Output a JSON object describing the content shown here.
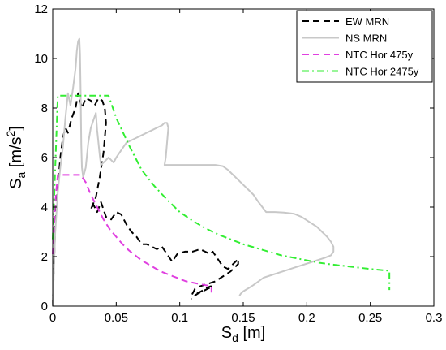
{
  "chart_data": {
    "type": "line",
    "xlabel": {
      "main": "S",
      "sub": "d",
      "unit": " [m]"
    },
    "ylabel": {
      "main": "S",
      "sub": "a",
      "unit": " [m/s",
      "sup": "2",
      "close": "]"
    },
    "xlim": [
      0,
      0.3
    ],
    "ylim": [
      0,
      12
    ],
    "xticks": [
      0,
      0.05,
      0.1,
      0.15,
      0.2,
      0.25,
      0.3
    ],
    "xtick_labels": [
      "0",
      "0.05",
      "0.1",
      "0.15",
      "0.2",
      "0.25",
      "0.3"
    ],
    "yticks": [
      0,
      2,
      4,
      6,
      8,
      10,
      12
    ],
    "ytick_labels": [
      "0",
      "2",
      "4",
      "6",
      "8",
      "10",
      "12"
    ],
    "legend_position": "top-right",
    "series": [
      {
        "name": "EW MRN",
        "color": "#000000",
        "dash": "dashed",
        "points": [
          [
            0,
            0
          ],
          [
            0.002,
            3.2
          ],
          [
            0.004,
            4.8
          ],
          [
            0.006,
            6.0
          ],
          [
            0.008,
            6.8
          ],
          [
            0.01,
            7.2
          ],
          [
            0.012,
            7.0
          ],
          [
            0.015,
            7.6
          ],
          [
            0.018,
            8.0
          ],
          [
            0.02,
            8.6
          ],
          [
            0.023,
            8.0
          ],
          [
            0.026,
            8.4
          ],
          [
            0.03,
            8.3
          ],
          [
            0.033,
            8.1
          ],
          [
            0.036,
            8.4
          ],
          [
            0.039,
            8.3
          ],
          [
            0.041,
            8.0
          ],
          [
            0.042,
            7.4
          ],
          [
            0.04,
            6.2
          ],
          [
            0.037,
            5.2
          ],
          [
            0.034,
            4.4
          ],
          [
            0.03,
            3.9
          ],
          [
            0.032,
            4.1
          ],
          [
            0.035,
            3.8
          ],
          [
            0.038,
            4.2
          ],
          [
            0.042,
            3.6
          ],
          [
            0.046,
            3.5
          ],
          [
            0.05,
            3.8
          ],
          [
            0.054,
            3.7
          ],
          [
            0.058,
            3.3
          ],
          [
            0.062,
            3.0
          ],
          [
            0.066,
            2.8
          ],
          [
            0.07,
            2.5
          ],
          [
            0.074,
            2.5
          ],
          [
            0.078,
            2.4
          ],
          [
            0.082,
            2.3
          ],
          [
            0.086,
            2.4
          ],
          [
            0.09,
            2.1
          ],
          [
            0.094,
            1.8
          ],
          [
            0.098,
            2.1
          ],
          [
            0.104,
            2.2
          ],
          [
            0.11,
            2.2
          ],
          [
            0.116,
            2.3
          ],
          [
            0.12,
            2.2
          ],
          [
            0.124,
            2.1
          ],
          [
            0.126,
            2.2
          ],
          [
            0.13,
            1.9
          ],
          [
            0.134,
            1.6
          ],
          [
            0.138,
            1.5
          ],
          [
            0.142,
            1.7
          ],
          [
            0.146,
            1.9
          ],
          [
            0.146,
            1.7
          ],
          [
            0.14,
            1.4
          ],
          [
            0.134,
            1.2
          ],
          [
            0.128,
            1.0
          ],
          [
            0.122,
            0.9
          ],
          [
            0.116,
            0.8
          ],
          [
            0.112,
            0.7
          ],
          [
            0.11,
            0.5
          ],
          [
            0.113,
            0.5
          ],
          [
            0.117,
            0.6
          ],
          [
            0.12,
            0.7
          ],
          [
            0.124,
            0.8
          ],
          [
            0.126,
            0.8
          ],
          [
            0.122,
            0.7
          ],
          [
            0.118,
            0.6
          ],
          [
            0.114,
            0.5
          ],
          [
            0.111,
            0.4
          ],
          [
            0.109,
            0.3
          ]
        ]
      },
      {
        "name": "NS MRN",
        "color": "#c8c8c8",
        "dash": "solid",
        "points": [
          [
            0,
            0
          ],
          [
            0.002,
            3.0
          ],
          [
            0.004,
            4.6
          ],
          [
            0.006,
            5.6
          ],
          [
            0.008,
            6.4
          ],
          [
            0.01,
            7.6
          ],
          [
            0.012,
            8.6
          ],
          [
            0.014,
            8.1
          ],
          [
            0.016,
            8.8
          ],
          [
            0.018,
            9.6
          ],
          [
            0.019,
            10.3
          ],
          [
            0.02,
            10.7
          ],
          [
            0.021,
            10.8
          ],
          [
            0.0215,
            10.2
          ],
          [
            0.022,
            8.6
          ],
          [
            0.0225,
            6.5
          ],
          [
            0.023,
            5.6
          ],
          [
            0.024,
            5.2
          ],
          [
            0.026,
            5.6
          ],
          [
            0.028,
            6.6
          ],
          [
            0.03,
            7.2
          ],
          [
            0.032,
            7.5
          ],
          [
            0.034,
            7.8
          ],
          [
            0.035,
            7.1
          ],
          [
            0.036,
            6.6
          ],
          [
            0.037,
            6.1
          ],
          [
            0.038,
            5.7
          ],
          [
            0.04,
            5.8
          ],
          [
            0.042,
            5.9
          ],
          [
            0.044,
            6.0
          ],
          [
            0.046,
            5.9
          ],
          [
            0.048,
            5.8
          ],
          [
            0.05,
            6.0
          ],
          [
            0.054,
            6.3
          ],
          [
            0.058,
            6.6
          ],
          [
            0.062,
            6.7
          ],
          [
            0.066,
            6.8
          ],
          [
            0.07,
            6.9
          ],
          [
            0.074,
            7.0
          ],
          [
            0.078,
            7.1
          ],
          [
            0.082,
            7.2
          ],
          [
            0.086,
            7.3
          ],
          [
            0.088,
            7.4
          ],
          [
            0.09,
            7.4
          ],
          [
            0.091,
            7.2
          ],
          [
            0.09,
            6.6
          ],
          [
            0.089,
            6.0
          ],
          [
            0.088,
            5.7
          ],
          [
            0.096,
            5.7
          ],
          [
            0.104,
            5.7
          ],
          [
            0.112,
            5.7
          ],
          [
            0.12,
            5.7
          ],
          [
            0.128,
            5.7
          ],
          [
            0.134,
            5.65
          ],
          [
            0.138,
            5.5
          ],
          [
            0.142,
            5.3
          ],
          [
            0.146,
            5.1
          ],
          [
            0.15,
            4.9
          ],
          [
            0.154,
            4.7
          ],
          [
            0.158,
            4.5
          ],
          [
            0.162,
            4.2
          ],
          [
            0.165,
            4.0
          ],
          [
            0.168,
            3.8
          ],
          [
            0.175,
            3.8
          ],
          [
            0.182,
            3.78
          ],
          [
            0.19,
            3.73
          ],
          [
            0.196,
            3.6
          ],
          [
            0.202,
            3.4
          ],
          [
            0.208,
            3.2
          ],
          [
            0.212,
            3.0
          ],
          [
            0.216,
            2.8
          ],
          [
            0.219,
            2.6
          ],
          [
            0.221,
            2.4
          ],
          [
            0.221,
            2.2
          ],
          [
            0.219,
            2.05
          ],
          [
            0.214,
            1.95
          ],
          [
            0.208,
            1.85
          ],
          [
            0.202,
            1.75
          ],
          [
            0.196,
            1.65
          ],
          [
            0.19,
            1.55
          ],
          [
            0.184,
            1.45
          ],
          [
            0.178,
            1.35
          ],
          [
            0.172,
            1.25
          ],
          [
            0.166,
            1.15
          ],
          [
            0.162,
            1.0
          ],
          [
            0.158,
            0.85
          ],
          [
            0.154,
            0.72
          ],
          [
            0.15,
            0.6
          ],
          [
            0.148,
            0.5
          ],
          [
            0.147,
            0.42
          ]
        ]
      },
      {
        "name": "NTC Hor 475y",
        "color": "#e040e0",
        "dash": "dashed",
        "points": [
          [
            0,
            2.1
          ],
          [
            0.002,
            4.2
          ],
          [
            0.004,
            5.3
          ],
          [
            0.01,
            5.3
          ],
          [
            0.016,
            5.3
          ],
          [
            0.022,
            5.3
          ],
          [
            0.026,
            5.0
          ],
          [
            0.03,
            4.5
          ],
          [
            0.035,
            4.0
          ],
          [
            0.04,
            3.5
          ],
          [
            0.045,
            3.1
          ],
          [
            0.05,
            2.8
          ],
          [
            0.055,
            2.5
          ],
          [
            0.06,
            2.25
          ],
          [
            0.065,
            2.05
          ],
          [
            0.07,
            1.85
          ],
          [
            0.075,
            1.7
          ],
          [
            0.08,
            1.55
          ],
          [
            0.085,
            1.4
          ],
          [
            0.09,
            1.3
          ],
          [
            0.095,
            1.2
          ],
          [
            0.1,
            1.1
          ],
          [
            0.105,
            1.0
          ],
          [
            0.11,
            0.95
          ],
          [
            0.115,
            0.9
          ],
          [
            0.12,
            0.85
          ],
          [
            0.125,
            0.8
          ],
          [
            0.125,
            0.65
          ],
          [
            0.125,
            0.55
          ]
        ]
      },
      {
        "name": "NTC Hor 2475y",
        "color": "#33ee33",
        "dash": "dashdot",
        "points": [
          [
            0,
            2.7
          ],
          [
            0.002,
            5.6
          ],
          [
            0.004,
            8.5
          ],
          [
            0.015,
            8.5
          ],
          [
            0.03,
            8.5
          ],
          [
            0.044,
            8.5
          ],
          [
            0.05,
            7.6
          ],
          [
            0.06,
            6.5
          ],
          [
            0.07,
            5.5
          ],
          [
            0.08,
            4.85
          ],
          [
            0.09,
            4.3
          ],
          [
            0.1,
            3.8
          ],
          [
            0.11,
            3.45
          ],
          [
            0.12,
            3.15
          ],
          [
            0.13,
            2.9
          ],
          [
            0.14,
            2.7
          ],
          [
            0.15,
            2.5
          ],
          [
            0.16,
            2.35
          ],
          [
            0.17,
            2.2
          ],
          [
            0.18,
            2.05
          ],
          [
            0.19,
            1.95
          ],
          [
            0.2,
            1.85
          ],
          [
            0.21,
            1.75
          ],
          [
            0.22,
            1.68
          ],
          [
            0.23,
            1.62
          ],
          [
            0.24,
            1.56
          ],
          [
            0.25,
            1.5
          ],
          [
            0.26,
            1.45
          ],
          [
            0.265,
            1.43
          ],
          [
            0.265,
            1.0
          ],
          [
            0.265,
            0.65
          ]
        ]
      }
    ]
  }
}
